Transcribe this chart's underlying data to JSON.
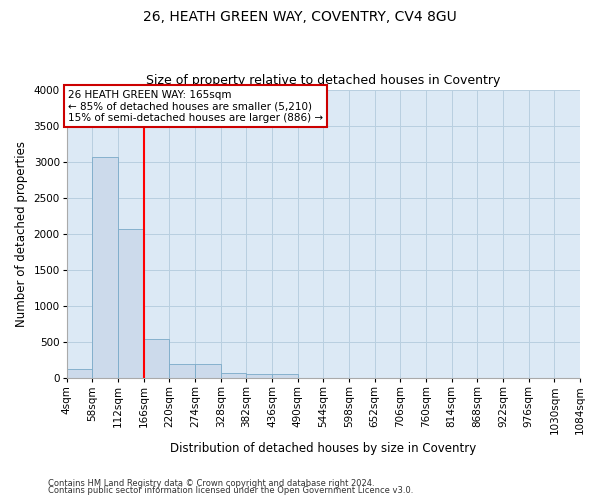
{
  "title1": "26, HEATH GREEN WAY, COVENTRY, CV4 8GU",
  "title2": "Size of property relative to detached houses in Coventry",
  "xlabel": "Distribution of detached houses by size in Coventry",
  "ylabel": "Number of detached properties",
  "bin_labels": [
    "4sqm",
    "58sqm",
    "112sqm",
    "166sqm",
    "220sqm",
    "274sqm",
    "328sqm",
    "382sqm",
    "436sqm",
    "490sqm",
    "544sqm",
    "598sqm",
    "652sqm",
    "706sqm",
    "760sqm",
    "814sqm",
    "868sqm",
    "922sqm",
    "976sqm",
    "1030sqm",
    "1084sqm"
  ],
  "bin_edges": [
    4,
    58,
    112,
    166,
    220,
    274,
    328,
    382,
    436,
    490,
    544,
    598,
    652,
    706,
    760,
    814,
    868,
    922,
    976,
    1030,
    1084
  ],
  "bar_heights": [
    130,
    3060,
    2060,
    540,
    200,
    200,
    75,
    60,
    50,
    0,
    0,
    0,
    0,
    0,
    0,
    0,
    0,
    0,
    0,
    0
  ],
  "bar_color": "#ccdaeb",
  "bar_edge_color": "#7aaac8",
  "red_line_x": 166,
  "annotation_line1": "26 HEATH GREEN WAY: 165sqm",
  "annotation_line2": "← 85% of detached houses are smaller (5,210)",
  "annotation_line3": "15% of semi-detached houses are larger (886) →",
  "annotation_box_color": "#ffffff",
  "annotation_box_edge_color": "#cc0000",
  "ylim": [
    0,
    4000
  ],
  "yticks": [
    0,
    500,
    1000,
    1500,
    2000,
    2500,
    3000,
    3500,
    4000
  ],
  "footer1": "Contains HM Land Registry data © Crown copyright and database right 2024.",
  "footer2": "Contains public sector information licensed under the Open Government Licence v3.0.",
  "bg_color": "#ffffff",
  "plot_bg_color": "#dce9f5",
  "grid_color": "#b8cfe0",
  "title1_fontsize": 10,
  "title2_fontsize": 9,
  "axis_label_fontsize": 8.5,
  "tick_fontsize": 7.5,
  "annotation_fontsize": 7.5,
  "footer_fontsize": 6
}
